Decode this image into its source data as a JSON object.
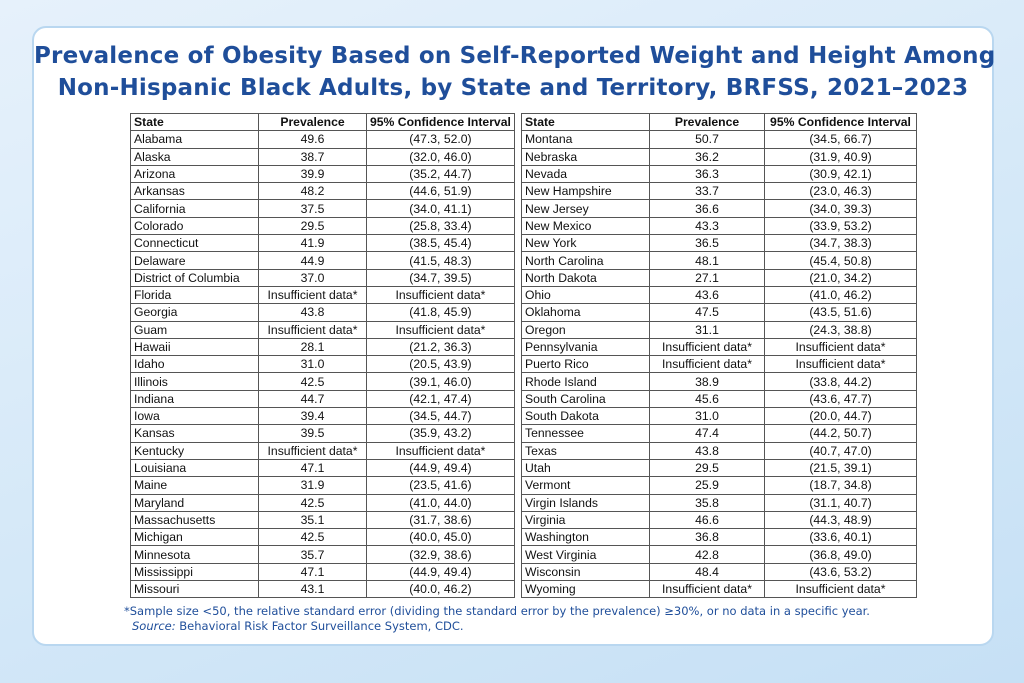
{
  "title": {
    "line1": "Prevalence of Obesity Based on Self-Reported Weight and Height Among",
    "line2": "Non-Hispanic Black Adults, by State and Territory, BRFSS, 2021–2023"
  },
  "columns": [
    "State",
    "Prevalence",
    "95% Confidence Interval"
  ],
  "left_rows": [
    [
      "Alabama",
      "49.6",
      "(47.3, 52.0)"
    ],
    [
      "Alaska",
      "38.7",
      "(32.0, 46.0)"
    ],
    [
      "Arizona",
      "39.9",
      "(35.2, 44.7)"
    ],
    [
      "Arkansas",
      "48.2",
      "(44.6, 51.9)"
    ],
    [
      "California",
      "37.5",
      "(34.0, 41.1)"
    ],
    [
      "Colorado",
      "29.5",
      "(25.8, 33.4)"
    ],
    [
      "Connecticut",
      "41.9",
      "(38.5, 45.4)"
    ],
    [
      "Delaware",
      "44.9",
      "(41.5, 48.3)"
    ],
    [
      "District of Columbia",
      "37.0",
      "(34.7, 39.5)"
    ],
    [
      "Florida",
      "Insufficient data*",
      "Insufficient data*"
    ],
    [
      "Georgia",
      "43.8",
      "(41.8, 45.9)"
    ],
    [
      "Guam",
      "Insufficient data*",
      "Insufficient data*"
    ],
    [
      "Hawaii",
      "28.1",
      "(21.2, 36.3)"
    ],
    [
      "Idaho",
      "31.0",
      "(20.5, 43.9)"
    ],
    [
      "Illinois",
      "42.5",
      "(39.1, 46.0)"
    ],
    [
      "Indiana",
      "44.7",
      "(42.1, 47.4)"
    ],
    [
      "Iowa",
      "39.4",
      "(34.5, 44.7)"
    ],
    [
      "Kansas",
      "39.5",
      "(35.9, 43.2)"
    ],
    [
      "Kentucky",
      "Insufficient data*",
      "Insufficient data*"
    ],
    [
      "Louisiana",
      "47.1",
      "(44.9, 49.4)"
    ],
    [
      "Maine",
      "31.9",
      "(23.5, 41.6)"
    ],
    [
      "Maryland",
      "42.5",
      "(41.0, 44.0)"
    ],
    [
      "Massachusetts",
      "35.1",
      "(31.7, 38.6)"
    ],
    [
      "Michigan",
      "42.5",
      "(40.0, 45.0)"
    ],
    [
      "Minnesota",
      "35.7",
      "(32.9, 38.6)"
    ],
    [
      "Mississippi",
      "47.1",
      "(44.9, 49.4)"
    ],
    [
      "Missouri",
      "43.1",
      "(40.0, 46.2)"
    ]
  ],
  "right_rows": [
    [
      "Montana",
      "50.7",
      "(34.5, 66.7)"
    ],
    [
      "Nebraska",
      "36.2",
      "(31.9, 40.9)"
    ],
    [
      "Nevada",
      "36.3",
      "(30.9, 42.1)"
    ],
    [
      "New Hampshire",
      "33.7",
      "(23.0, 46.3)"
    ],
    [
      "New Jersey",
      "36.6",
      "(34.0, 39.3)"
    ],
    [
      "New Mexico",
      "43.3",
      "(33.9, 53.2)"
    ],
    [
      "New York",
      "36.5",
      "(34.7, 38.3)"
    ],
    [
      "North Carolina",
      "48.1",
      "(45.4, 50.8)"
    ],
    [
      "North Dakota",
      "27.1",
      "(21.0, 34.2)"
    ],
    [
      "Ohio",
      "43.6",
      "(41.0, 46.2)"
    ],
    [
      "Oklahoma",
      "47.5",
      "(43.5, 51.6)"
    ],
    [
      "Oregon",
      "31.1",
      "(24.3, 38.8)"
    ],
    [
      "Pennsylvania",
      "Insufficient data*",
      "Insufficient data*"
    ],
    [
      "Puerto Rico",
      "Insufficient data*",
      "Insufficient data*"
    ],
    [
      "Rhode Island",
      "38.9",
      "(33.8, 44.2)"
    ],
    [
      "South Carolina",
      "45.6",
      "(43.6, 47.7)"
    ],
    [
      "South Dakota",
      "31.0",
      "(20.0, 44.7)"
    ],
    [
      "Tennessee",
      "47.4",
      "(44.2, 50.7)"
    ],
    [
      "Texas",
      "43.8",
      "(40.7, 47.0)"
    ],
    [
      "Utah",
      "29.5",
      "(21.5, 39.1)"
    ],
    [
      "Vermont",
      "25.9",
      "(18.7, 34.8)"
    ],
    [
      "Virgin Islands",
      "35.8",
      "(31.1, 40.7)"
    ],
    [
      "Virginia",
      "46.6",
      "(44.3, 48.9)"
    ],
    [
      "Washington",
      "36.8",
      "(33.6, 40.1)"
    ],
    [
      "West Virginia",
      "42.8",
      "(36.8, 49.0)"
    ],
    [
      "Wisconsin",
      "48.4",
      "(43.6, 53.2)"
    ],
    [
      "Wyoming",
      "Insufficient data*",
      "Insufficient data*"
    ]
  ],
  "footnote": {
    "note": "*Sample size <50, the relative standard error (dividing the standard error by the prevalence) ≥30%, or no data in a specific year.",
    "source_label": "Source:",
    "source_text": " Behavioral Risk Factor Surveillance System, CDC."
  }
}
